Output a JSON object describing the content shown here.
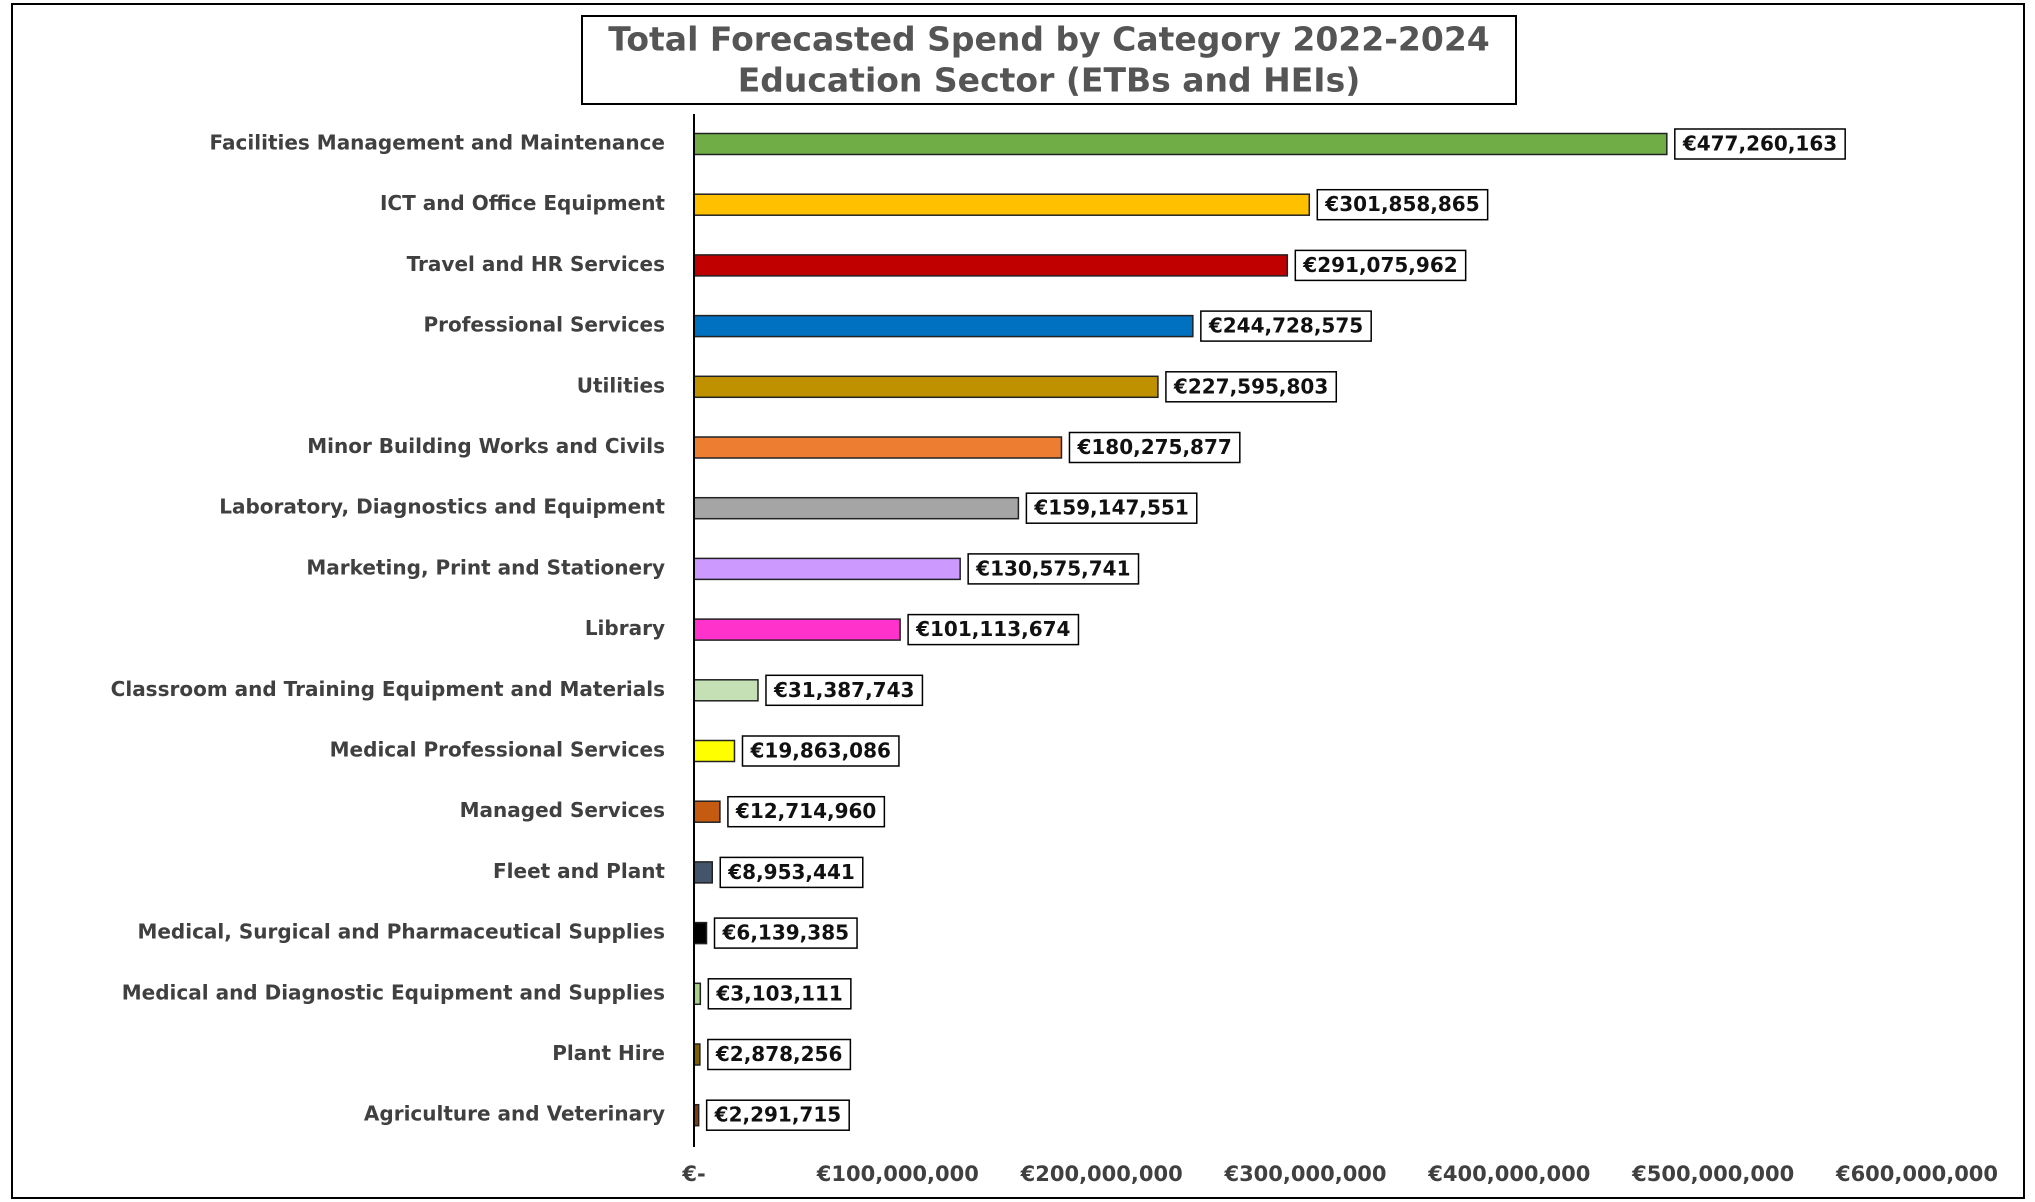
{
  "chart_data": {
    "type": "bar",
    "orientation": "horizontal",
    "title": "Total Forecasted Spend by Category 2022-2024",
    "subtitle": "Education Sector (ETBs and HEIs)",
    "categories": [
      "Facilities Management and Maintenance",
      "ICT and Office Equipment",
      "Travel and HR Services",
      "Professional Services",
      "Utilities",
      "Minor Building Works and Civils",
      "Laboratory, Diagnostics and Equipment",
      "Marketing, Print and Stationery",
      "Library",
      "Classroom and Training Equipment and Materials",
      "Medical Professional Services",
      "Managed Services",
      "Fleet and Plant",
      "Medical, Surgical and Pharmaceutical Supplies",
      "Medical and Diagnostic Equipment and Supplies",
      "Plant Hire",
      "Agriculture and Veterinary"
    ],
    "values": [
      477260163,
      301858865,
      291075962,
      244728575,
      227595803,
      180275877,
      159147551,
      130575741,
      101113674,
      31387743,
      19863086,
      12714960,
      8953441,
      6139385,
      3103111,
      2878256,
      2291715
    ],
    "value_labels": [
      "€477,260,163",
      "€301,858,865",
      "€291,075,962",
      "€244,728,575",
      "€227,595,803",
      "€180,275,877",
      "€159,147,551",
      "€130,575,741",
      "€101,113,674",
      "€31,387,743",
      "€19,863,086",
      "€12,714,960",
      "€8,953,441",
      "€6,139,385",
      "€3,103,111",
      "€2,878,256",
      "€2,291,715"
    ],
    "colors": [
      "#70ad47",
      "#ffc000",
      "#c00000",
      "#0070c0",
      "#bf9000",
      "#ed7d31",
      "#a5a5a5",
      "#cc99ff",
      "#ff33cc",
      "#c5e0b4",
      "#ffff00",
      "#c55a11",
      "#44546a",
      "#000000",
      "#a9d18e",
      "#7f6000",
      "#843c0c"
    ],
    "xlim": [
      0,
      600000000
    ],
    "xticks": [
      {
        "value": 0,
        "label": "€-"
      },
      {
        "value": 100000000,
        "label": "€100,000,000"
      },
      {
        "value": 200000000,
        "label": "€200,000,000"
      },
      {
        "value": 300000000,
        "label": "€300,000,000"
      },
      {
        "value": 400000000,
        "label": "€400,000,000"
      },
      {
        "value": 500000000,
        "label": "€500,000,000"
      },
      {
        "value": 600000000,
        "label": "€600,000,000"
      }
    ]
  }
}
